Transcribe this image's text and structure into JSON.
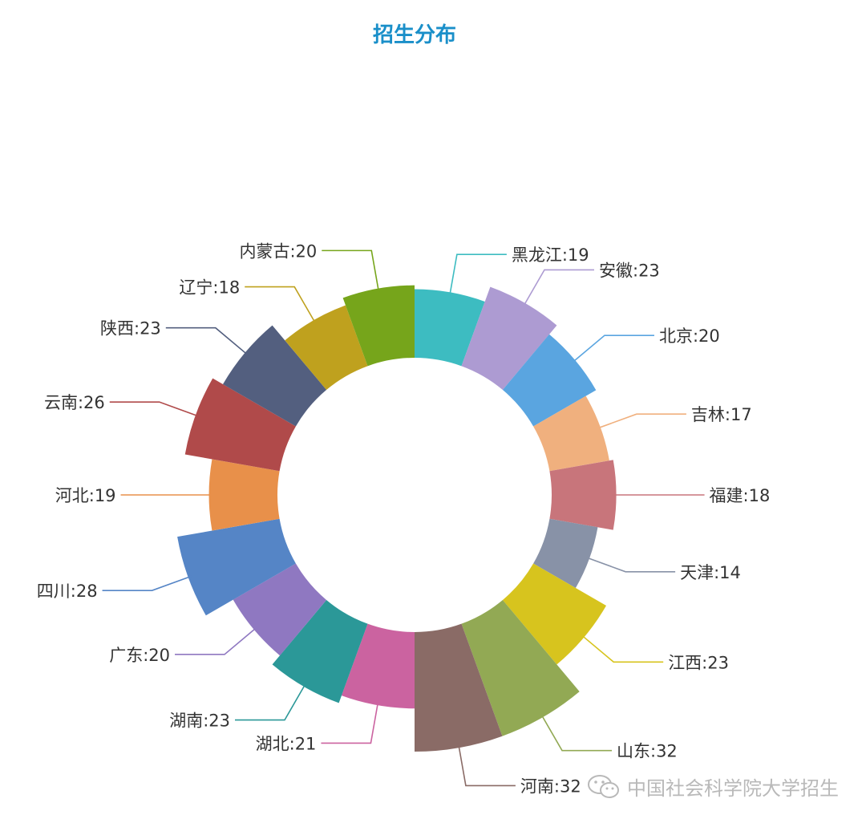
{
  "colors": {
    "title": "#1a8fc9",
    "label_text": "#333333",
    "watermark": "#b9b9b9"
  },
  "watermark": {
    "icon": "wechat-icon",
    "text": "中国社会科学院大学招生"
  },
  "chart_data": {
    "type": "pie",
    "subtype": "nightingale-rose",
    "title": "招生分布",
    "label_format": "{name}:{value}",
    "start": "12-o'clock",
    "direction": "clockwise",
    "categories": [
      "黑龙江",
      "安徽",
      "北京",
      "吉林",
      "福建",
      "天津",
      "江西",
      "山东",
      "河南",
      "湖北",
      "湖南",
      "广东",
      "四川",
      "河北",
      "云南",
      "陕西",
      "辽宁",
      "内蒙古"
    ],
    "values": [
      19,
      23,
      20,
      17,
      18,
      14,
      23,
      32,
      32,
      21,
      23,
      20,
      28,
      19,
      26,
      23,
      18,
      20
    ],
    "colors": [
      "#3dbcc1",
      "#ad9bd2",
      "#5aa5e0",
      "#f0b07e",
      "#c8757b",
      "#8892a7",
      "#d7c41e",
      "#92a954",
      "#8a6b66",
      "#cb63a0",
      "#2b9898",
      "#8f78c1",
      "#5585c6",
      "#e8904a",
      "#b04a4a",
      "#535f7f",
      "#bfa11e",
      "#76a51b"
    ]
  }
}
